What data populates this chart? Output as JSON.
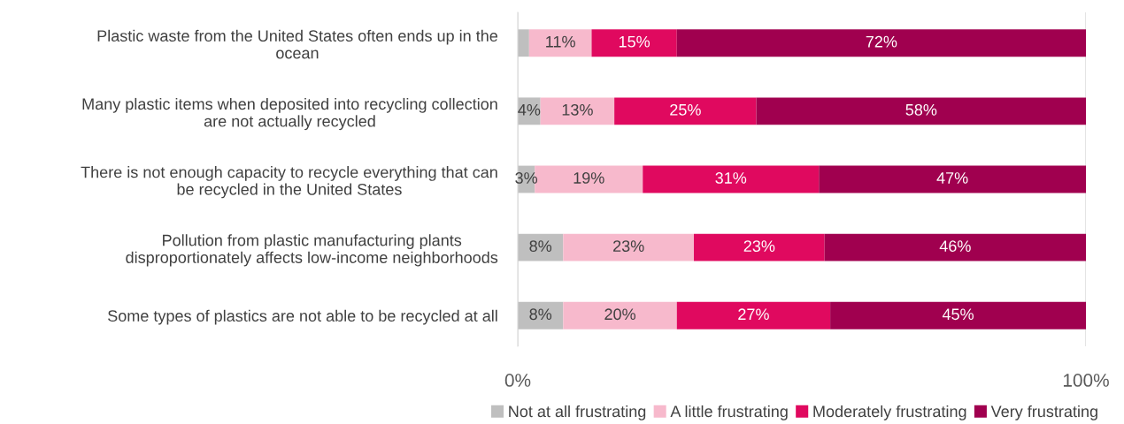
{
  "chart_data": {
    "type": "bar",
    "orientation": "horizontal",
    "stacked": true,
    "categories": [
      "Plastic waste from the United States often ends up in the\nocean",
      "Many plastic items when deposited into recycling collection\nare not actually recycled",
      "There is not enough capacity to recycle everything that can\nbe recycled in the United States",
      "Pollution from plastic manufacturing plants\ndisproportionately affects low-income neighborhoods",
      "Some types of plastics are not able to be recycled at all"
    ],
    "series": [
      {
        "name": "Not at all frustrating",
        "color": "#bfbfbf",
        "values": [
          2,
          4,
          3,
          8,
          8
        ],
        "value_labels": [
          null,
          "4%",
          "3%",
          "8%",
          "8%"
        ]
      },
      {
        "name": "A little frustrating",
        "color": "#f7b9cc",
        "values": [
          11,
          13,
          19,
          23,
          20
        ],
        "value_labels": [
          "11%",
          "13%",
          "19%",
          "23%",
          "20%"
        ]
      },
      {
        "name": "Moderately frustrating",
        "color": "#e0095f",
        "values": [
          15,
          25,
          31,
          23,
          27
        ],
        "value_labels": [
          "15%",
          "25%",
          "31%",
          "23%",
          "27%"
        ]
      },
      {
        "name": "Very frustrating",
        "color": "#a0004f",
        "values": [
          72,
          58,
          47,
          46,
          45
        ],
        "value_labels": [
          "72%",
          "58%",
          "47%",
          "46%",
          "45%"
        ]
      }
    ],
    "xlim": [
      0,
      100
    ],
    "xticks": [
      {
        "value": 0,
        "label": "0%"
      },
      {
        "value": 100,
        "label": "100%"
      }
    ],
    "grid": "x",
    "legend": "bottom"
  }
}
